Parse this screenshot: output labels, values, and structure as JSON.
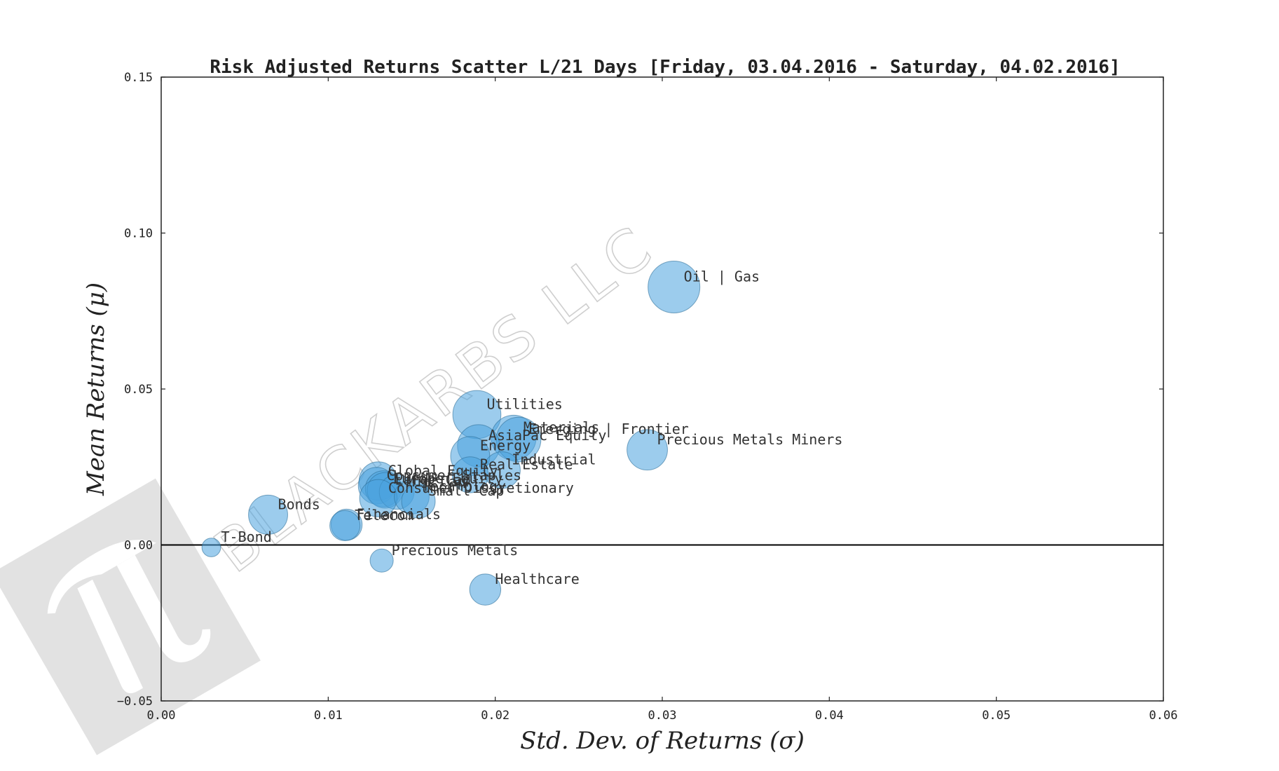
{
  "colors": {
    "bubble_fill": "#4aa3df",
    "bubble_stroke": "#2f6f9a",
    "axis": "#222222",
    "zero_line": "#000000",
    "watermark": "#dedede"
  },
  "watermark": {
    "text": "BLACKARBS LLC",
    "icon": "pi-logo-icon"
  },
  "chart_data": {
    "type": "scatter",
    "title": "Risk Adjusted Returns Scatter L/21 Days [Friday, 03.04.2016 - Saturday, 04.02.2016]",
    "xlabel": "Std. Dev. of Returns (σ)",
    "ylabel": "Mean Returns (μ)",
    "xlim": [
      0.0,
      0.06
    ],
    "ylim": [
      -0.05,
      0.15
    ],
    "x_ticks": [
      0.0,
      0.01,
      0.02,
      0.03,
      0.04,
      0.05,
      0.06
    ],
    "x_tick_labels": [
      "0.00",
      "0.01",
      "0.02",
      "0.03",
      "0.04",
      "0.05",
      "0.06"
    ],
    "y_ticks": [
      -0.05,
      0.0,
      0.05,
      0.1,
      0.15
    ],
    "y_tick_labels": [
      "−0.05",
      "0.00",
      "0.05",
      "0.10",
      "0.15"
    ],
    "grid": false,
    "zero_line": true,
    "points": [
      {
        "label": "Oil | Gas",
        "x": 0.0307,
        "y": 0.0827,
        "size": 1.0
      },
      {
        "label": "Utilities",
        "x": 0.0189,
        "y": 0.0418,
        "size": 0.86
      },
      {
        "label": "Materials",
        "x": 0.0211,
        "y": 0.0344,
        "size": 0.75
      },
      {
        "label": "Emerging | Frontier",
        "x": 0.0214,
        "y": 0.0338,
        "size": 0.74
      },
      {
        "label": "AsiaPac Equity",
        "x": 0.019,
        "y": 0.0318,
        "size": 0.66
      },
      {
        "label": "Precious Metals Miners",
        "x": 0.0291,
        "y": 0.0305,
        "size": 0.61
      },
      {
        "label": "Energy",
        "x": 0.0185,
        "y": 0.0285,
        "size": 0.57
      },
      {
        "label": "Industrial",
        "x": 0.0204,
        "y": 0.024,
        "size": 0.5
      },
      {
        "label": "Real Estate",
        "x": 0.0185,
        "y": 0.0225,
        "size": 0.48
      },
      {
        "label": "Global Equity",
        "x": 0.013,
        "y": 0.0205,
        "size": 0.55
      },
      {
        "label": "Consumer Staples",
        "x": 0.0129,
        "y": 0.019,
        "size": 0.5
      },
      {
        "label": "Europe Equity",
        "x": 0.0133,
        "y": 0.018,
        "size": 0.48
      },
      {
        "label": "Large Cap",
        "x": 0.0134,
        "y": 0.0175,
        "size": 0.47
      },
      {
        "label": "Mid Cap",
        "x": 0.0141,
        "y": 0.017,
        "size": 0.45
      },
      {
        "label": "Consumer Discretionary",
        "x": 0.013,
        "y": 0.015,
        "size": 0.52
      },
      {
        "label": "Technology",
        "x": 0.015,
        "y": 0.0155,
        "size": 0.45
      },
      {
        "label": "Small Cap",
        "x": 0.0154,
        "y": 0.014,
        "size": 0.42
      },
      {
        "label": "Bonds",
        "x": 0.0064,
        "y": 0.0097,
        "size": 0.57
      },
      {
        "label": "Financials",
        "x": 0.0111,
        "y": 0.0065,
        "size": 0.36
      },
      {
        "label": "Telecom",
        "x": 0.011,
        "y": 0.0062,
        "size": 0.34
      },
      {
        "label": "T-Bond",
        "x": 0.003,
        "y": -0.0008,
        "size": 0.13
      },
      {
        "label": "Precious Metals",
        "x": 0.0132,
        "y": -0.005,
        "size": 0.2
      },
      {
        "label": "Healthcare",
        "x": 0.0194,
        "y": -0.0143,
        "size": 0.36
      }
    ]
  }
}
